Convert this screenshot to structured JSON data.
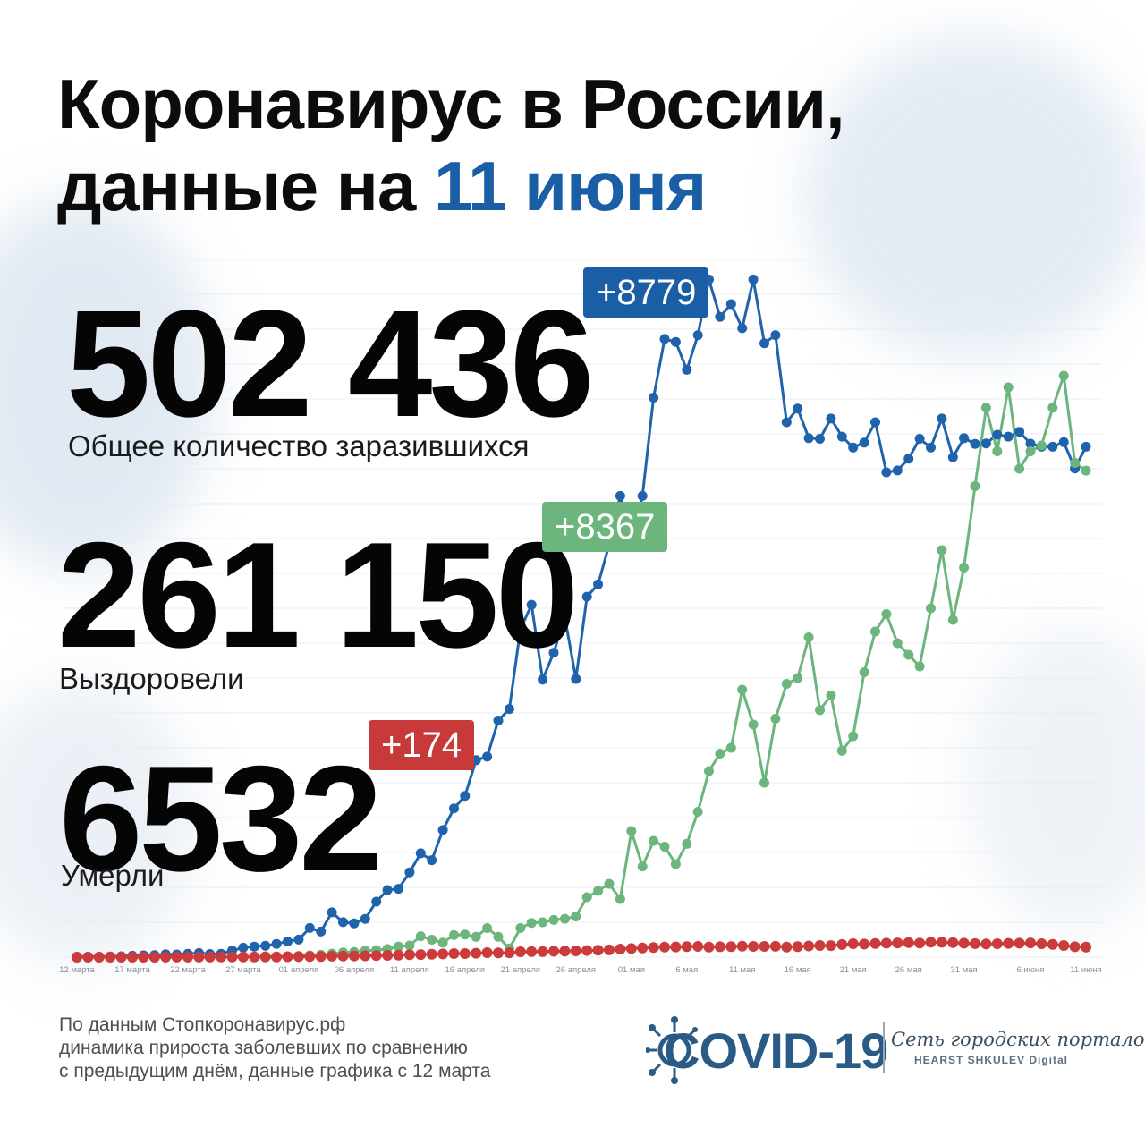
{
  "header": {
    "title_line1": "Коронавирус в России,",
    "title_line2_prefix": "данные на ",
    "title_line2_accent": "11 июня"
  },
  "stats": {
    "infected": {
      "value": "502 436",
      "label": "Общее количество заразившихся",
      "delta": "+8779"
    },
    "recovered": {
      "value": "261 150",
      "label": "Выздоровели",
      "delta": "+8367"
    },
    "deaths": {
      "value": "6532",
      "label": "Умерли",
      "delta": "+174"
    }
  },
  "footer": {
    "line1": "По данным Стопкоронавирус.рф",
    "line2": "динамика прироста заболевших по сравнению",
    "line3": "с предыдущим днём, данные графика с 12 марта"
  },
  "logo": {
    "word": "COVID-19",
    "tagline": "Сеть городских порталов",
    "sub": "HEARST SHKULEV Digital"
  },
  "colors": {
    "accent_blue": "#1a5ea6",
    "infected": "#2063ad",
    "recovered": "#6cb57d",
    "deaths": "#cc3b3b",
    "badge_red": "#c83a3a"
  },
  "chart_data": {
    "type": "line",
    "title": "",
    "xlabel": "",
    "ylabel": "",
    "legend": "none",
    "grid": true,
    "x_ticks": [
      {
        "label": "12 марта",
        "day": 0
      },
      {
        "label": "17 марта",
        "day": 5
      },
      {
        "label": "22 марта",
        "day": 10
      },
      {
        "label": "27 марта",
        "day": 15
      },
      {
        "label": "01 апреля",
        "day": 20
      },
      {
        "label": "06 апреля",
        "day": 25
      },
      {
        "label": "11 апреля",
        "day": 30
      },
      {
        "label": "16 апреля",
        "day": 35
      },
      {
        "label": "21 апреля",
        "day": 40
      },
      {
        "label": "26 апреля",
        "day": 45
      },
      {
        "label": "01 мая",
        "day": 50
      },
      {
        "label": "6 мая",
        "day": 55
      },
      {
        "label": "11 мая",
        "day": 60
      },
      {
        "label": "16 мая",
        "day": 65
      },
      {
        "label": "21 мая",
        "day": 70
      },
      {
        "label": "26 мая",
        "day": 75
      },
      {
        "label": "31 мая",
        "day": 80
      },
      {
        "label": "6 июня",
        "day": 86
      },
      {
        "label": "11 июня",
        "day": 91
      }
    ],
    "ylim": [
      0,
      12000
    ],
    "series": [
      {
        "key": "infected",
        "values": [
          6,
          8,
          8,
          12,
          15,
          24,
          30,
          34,
          49,
          46,
          57,
          71,
          54,
          57,
          114,
          163,
          182,
          196,
          228,
          270,
          302,
          501,
          440,
          771,
          601,
          582,
          658,
          954,
          1154,
          1175,
          1459,
          1786,
          1667,
          2186,
          2558,
          2774,
          3388,
          3448,
          4070,
          4268,
          5642,
          6060,
          4774,
          5236,
          5849,
          4785,
          6198,
          6411,
          7099,
          7933,
          7099,
          7933,
          9623,
          10633,
          10581,
          10102,
          10699,
          11656,
          11012,
          11231,
          10817,
          11656,
          10559,
          10699,
          9200,
          9434,
          8926,
          8915,
          9263,
          8952,
          8764,
          8849,
          9200,
          8338,
          8371,
          8572,
          8915,
          8764,
          9263,
          8599,
          8926,
          8828,
          8836,
          8985,
          8952,
          9035,
          8831,
          8779,
          8779,
          8857,
          8404,
          8779
        ],
        "note": "approximate daily new cases read from chart"
      },
      {
        "key": "recovered",
        "values": [
          0,
          0,
          0,
          0,
          0,
          0,
          0,
          0,
          0,
          0,
          0,
          0,
          0,
          0,
          0,
          0,
          0,
          0,
          0,
          10,
          20,
          30,
          40,
          60,
          80,
          90,
          110,
          120,
          140,
          180,
          200,
          360,
          300,
          250,
          380,
          390,
          350,
          500,
          350,
          150,
          500,
          590,
          600,
          640,
          660,
          700,
          1030,
          1140,
          1260,
          1000,
          2170,
          1560,
          2000,
          1900,
          1600,
          1950,
          2500,
          3200,
          3500,
          3600,
          4600,
          4000,
          3000,
          4100,
          4700,
          4800,
          5500,
          4250,
          4500,
          3550,
          3800,
          4900,
          5600,
          5900,
          5400,
          5200,
          5000,
          6000,
          7000,
          5800,
          6700,
          8100,
          9450,
          8700,
          9800,
          8400,
          8700,
          8800,
          9450,
          10000,
          8500,
          8367
        ],
        "note": "approximate daily recovered read from chart"
      },
      {
        "key": "deaths",
        "values": [
          0,
          0,
          0,
          0,
          0,
          0,
          0,
          0,
          1,
          1,
          1,
          1,
          2,
          3,
          4,
          3,
          5,
          6,
          5,
          8,
          9,
          12,
          13,
          17,
          20,
          22,
          23,
          27,
          31,
          34,
          41,
          45,
          51,
          55,
          61,
          62,
          68,
          77,
          72,
          76,
          92,
          95,
          96,
          101,
          105,
          108,
          114,
          119,
          125,
          138,
          148,
          159,
          165,
          172,
          176,
          180,
          185,
          174,
          179,
          182,
          189,
          185,
          184,
          186,
          174,
          181,
          193,
          200,
          198,
          217,
          230,
          225,
          235,
          240,
          245,
          250,
          243,
          258,
          255,
          250,
          240,
          232,
          228,
          230,
          237,
          240,
          245,
          230,
          220,
          200,
          179,
          174
        ],
        "note": "approximate daily deaths read from chart"
      }
    ]
  }
}
